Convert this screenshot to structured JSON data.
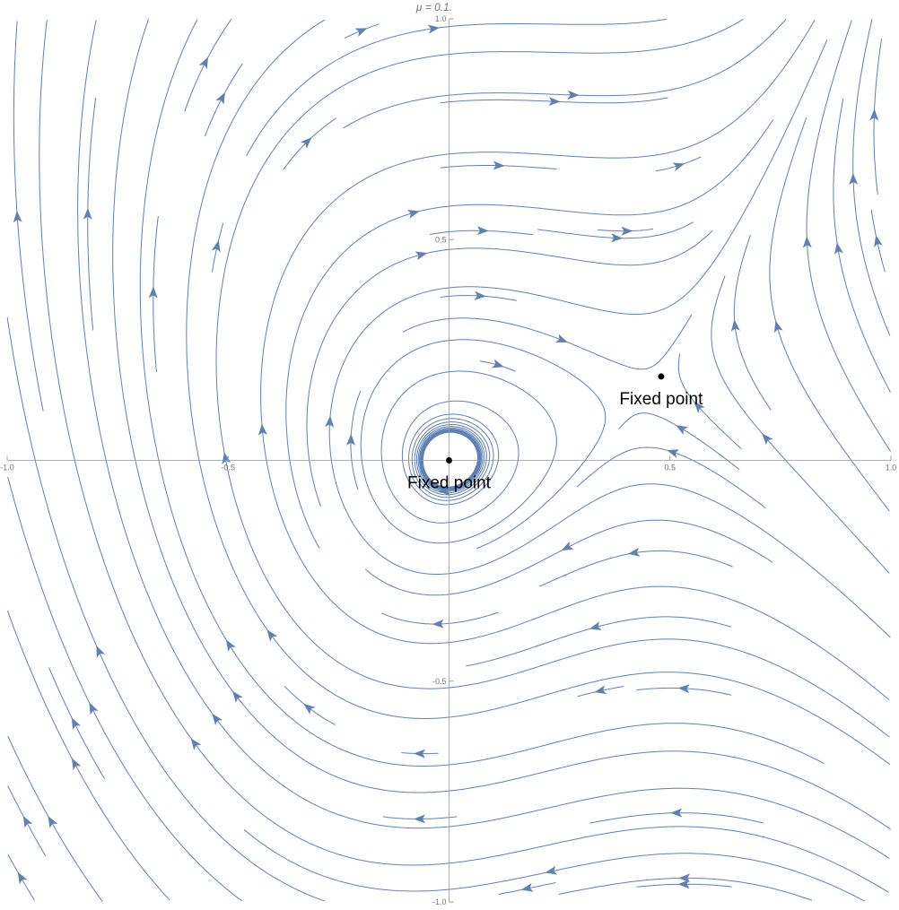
{
  "chart_data": {
    "type": "streamplot",
    "title": "μ = 0.1.",
    "xlim": [
      -1,
      1
    ],
    "ylim": [
      -1,
      1
    ],
    "xticks": [
      {
        "value": -1,
        "label": "-1.0"
      },
      {
        "value": -0.5,
        "label": "-0.5"
      },
      0.5,
      {
        "value": 1,
        "label": "1.0"
      }
    ],
    "yticks": [
      {
        "value": -1,
        "label": "-1.0"
      },
      {
        "value": -0.5,
        "label": "-0.5"
      },
      0.5,
      {
        "value": 1,
        "label": "1.0"
      }
    ],
    "color": "#5e81b5",
    "points": [
      {
        "x": 0,
        "y": 0,
        "label": "Fixed point"
      },
      {
        "x": 0.48,
        "y": 0.19,
        "label": "Fixed point"
      }
    ]
  }
}
